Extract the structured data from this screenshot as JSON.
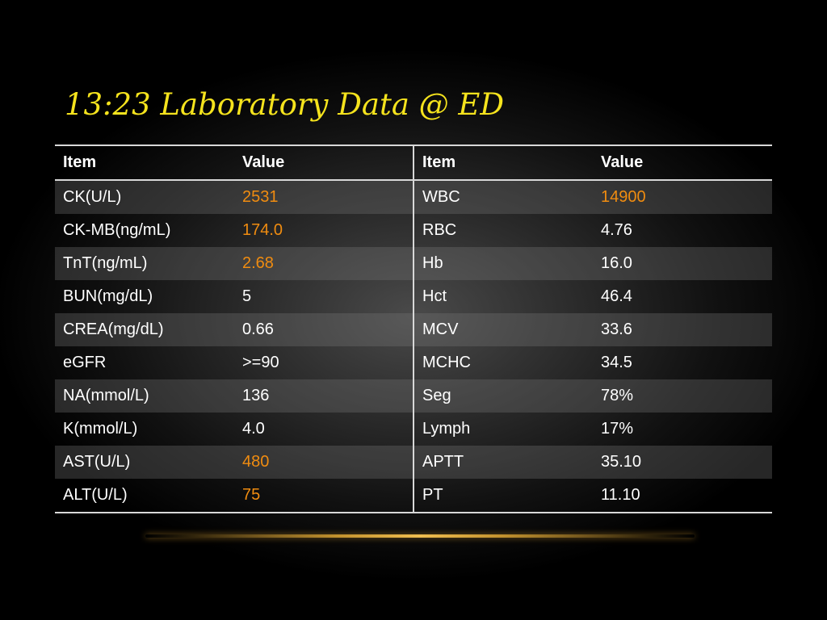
{
  "title": "13:23 Laboratory Data @ ED",
  "table": {
    "headers": [
      "Item",
      "Value",
      "Item",
      "Value"
    ],
    "highlight_color": "#f08c10",
    "title_color": "#f5e31d",
    "rows": [
      {
        "item1": "CK(U/L)",
        "value1": "2531",
        "hl1": true,
        "item2": "WBC",
        "value2": "14900",
        "hl2": true
      },
      {
        "item1": "CK-MB(ng/mL)",
        "value1": "174.0",
        "hl1": true,
        "item2": "RBC",
        "value2": "4.76",
        "hl2": false
      },
      {
        "item1": "TnT(ng/mL)",
        "value1": "2.68",
        "hl1": true,
        "item2": "Hb",
        "value2": "16.0",
        "hl2": false
      },
      {
        "item1": "BUN(mg/dL)",
        "value1": "5",
        "hl1": false,
        "item2": "Hct",
        "value2": "46.4",
        "hl2": false
      },
      {
        "item1": "CREA(mg/dL)",
        "value1": "0.66",
        "hl1": false,
        "item2": "MCV",
        "value2": "33.6",
        "hl2": false
      },
      {
        "item1": "eGFR",
        "value1": ">=90",
        "hl1": false,
        "item2": "MCHC",
        "value2": "34.5",
        "hl2": false
      },
      {
        "item1": "NA(mmol/L)",
        "value1": "136",
        "hl1": false,
        "item2": "Seg",
        "value2": "78%",
        "hl2": false
      },
      {
        "item1": "K(mmol/L)",
        "value1": "4.0",
        "hl1": false,
        "item2": "Lymph",
        "value2": "17%",
        "hl2": false
      },
      {
        "item1": "AST(U/L)",
        "value1": "480",
        "hl1": true,
        "item2": "APTT",
        "value2": "35.10",
        "hl2": false
      },
      {
        "item1": "ALT(U/L)",
        "value1": "75",
        "hl1": true,
        "item2": "PT",
        "value2": "11.10",
        "hl2": false
      }
    ]
  }
}
